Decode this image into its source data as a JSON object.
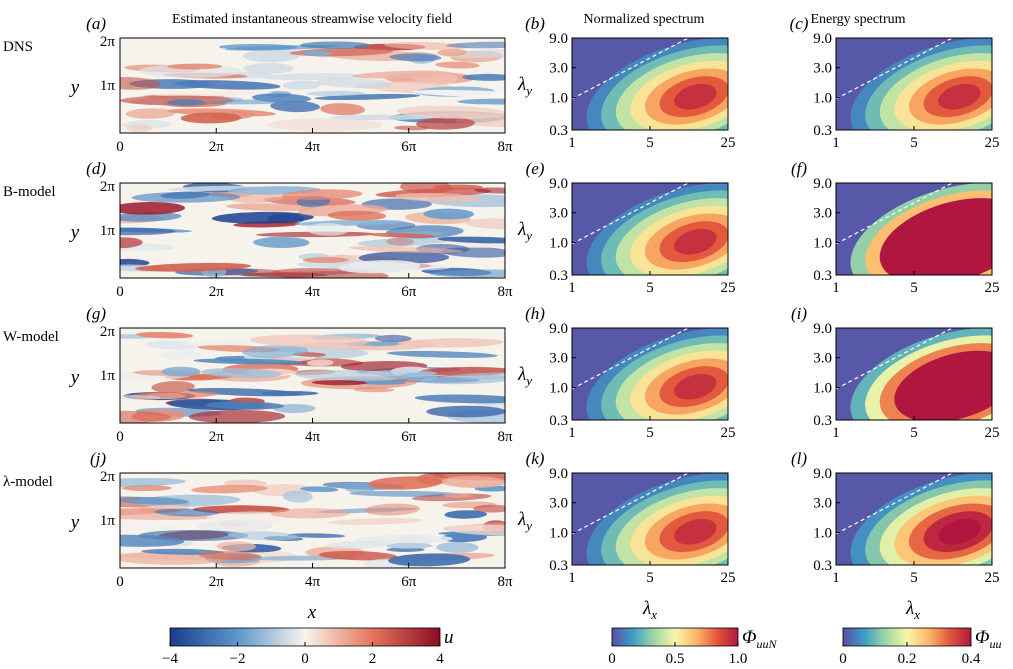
{
  "titles": {
    "field": "Estimated instantaneous streamwise velocity field",
    "normalized": "Normalized spectrum",
    "energy": "Energy spectrum"
  },
  "rows": [
    {
      "model": "DNS",
      "panels": [
        "(a)",
        "(b)",
        "(c)"
      ],
      "seed": 3
    },
    {
      "model": "B-model",
      "panels": [
        "(d)",
        "(e)",
        "(f)"
      ],
      "seed": 11
    },
    {
      "model": "W-model",
      "panels": [
        "(g)",
        "(h)",
        "(i)"
      ],
      "seed": 7
    },
    {
      "model": "λ-model",
      "panels": [
        "(j)",
        "(k)",
        "(l)"
      ],
      "seed": 19
    }
  ],
  "field": {
    "x_ticks": [
      "0",
      "2π",
      "4π",
      "6π",
      "8π"
    ],
    "y_ticks": [
      "2π",
      "1π"
    ],
    "x_label": "x",
    "y_label": "y",
    "amplitude": [
      0.75,
      1.1,
      0.9,
      0.8
    ]
  },
  "spectra": {
    "x_ticks": [
      "1",
      "5",
      "25"
    ],
    "y_ticks": [
      "9.0",
      "3.0",
      "1.0",
      "0.3"
    ],
    "x_label": "λx",
    "y_label": "λy",
    "normalized_intensity": [
      1.0,
      1.0,
      1.0,
      1.0
    ],
    "energy_intensity": [
      1.0,
      2.6,
      1.9,
      1.15
    ]
  },
  "colorbars": {
    "u": {
      "label": "u",
      "ticks": [
        "−4",
        "−2",
        "0",
        "2",
        "4"
      ],
      "colors": [
        "#1a3d8f",
        "#5d97c9",
        "#f7f4ef",
        "#e3755a",
        "#8c0b27"
      ]
    },
    "norm": {
      "label": "ΦuuN",
      "ticks": [
        "0",
        "0.5",
        "1.0"
      ],
      "colors": [
        "#5a4ea2",
        "#3e9ec8",
        "#9fd7a3",
        "#f7f6aa",
        "#fdb86a",
        "#e2573d",
        "#b0163f"
      ]
    },
    "energy": {
      "label": "Φuu",
      "ticks": [
        "0",
        "0.2",
        "0.4"
      ],
      "colors": [
        "#5a4ea2",
        "#3e9ec8",
        "#9fd7a3",
        "#f7f6aa",
        "#fdb86a",
        "#e2573d",
        "#b0163f"
      ]
    }
  }
}
